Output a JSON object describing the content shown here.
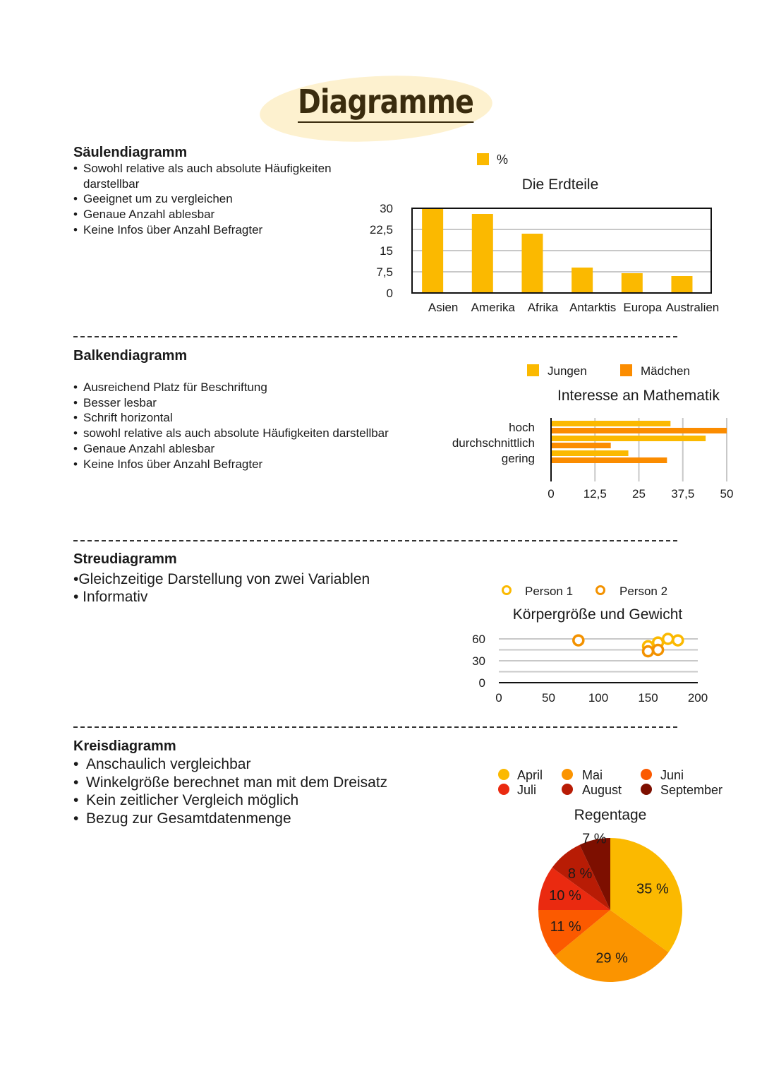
{
  "page_title": "Diagramme",
  "sections": [
    {
      "heading": "Säulendiagramm",
      "bullets": [
        "Sowohl relative als auch absolute Häufigkeiten darstellbar",
        "Geeignet um zu vergleichen",
        "Genaue Anzahl ablesbar",
        "Keine Infos über Anzahl Befragter"
      ]
    },
    {
      "heading": "Balkendiagramm",
      "bullets": [
        "Ausreichend Platz für Beschriftung",
        "Besser lesbar",
        "Schrift horizontal",
        " sowohl relative als auch absolute Häufigkeiten darstellbar",
        "Genaue Anzahl ablesbar",
        "Keine Infos über Anzahl Befragter"
      ]
    },
    {
      "heading": "Streudiagramm",
      "bullets": [
        "•Gleichzeitige Darstellung von zwei Variablen",
        "• Informativ"
      ]
    },
    {
      "heading": "Kreisdiagramm",
      "bullets": [
        "Anschaulich vergleichbar",
        "Winkelgröße berechnet man mit dem Dreisatz",
        "Kein zeitlicher Vergleich möglich",
        "Bezug zur Gesamtdatenmenge"
      ]
    }
  ],
  "chart_data": [
    {
      "type": "bar",
      "title": "Die Erdteile",
      "legend": [
        "%"
      ],
      "colors": [
        "#fbb900"
      ],
      "categories": [
        "Asien",
        "Amerika",
        "Afrika",
        "Antarktis",
        "Europa",
        "Australien"
      ],
      "values": [
        30,
        28,
        21,
        9,
        7,
        6
      ],
      "ylim": [
        0,
        30
      ],
      "yticks": [
        "0",
        "7,5",
        "15",
        "22,5",
        "30"
      ]
    },
    {
      "type": "bar",
      "orientation": "horizontal",
      "title": "Interesse an Mathematik",
      "categories": [
        "hoch",
        "durchschnittlich",
        "gering"
      ],
      "series": [
        {
          "name": "Jungen",
          "color": "#fbb900",
          "values": [
            34,
            44,
            22
          ]
        },
        {
          "name": "Mädchen",
          "color": "#fb8c00",
          "values": [
            50,
            17,
            33
          ]
        }
      ],
      "xlim": [
        0,
        50
      ],
      "xticks": [
        "0",
        "12,5",
        "25",
        "37,5",
        "50"
      ]
    },
    {
      "type": "scatter",
      "title": "Körpergröße und Gewicht",
      "series": [
        {
          "name": "Person 1",
          "color": "#fbb900",
          "points": [
            [
              150,
              50
            ],
            [
              160,
              55
            ],
            [
              170,
              60
            ],
            [
              180,
              58
            ]
          ]
        },
        {
          "name": "Person 2",
          "color": "#f39200",
          "points": [
            [
              80,
              58
            ],
            [
              150,
              43
            ],
            [
              160,
              45
            ]
          ]
        }
      ],
      "xlim": [
        0,
        200
      ],
      "ylim": [
        0,
        60
      ],
      "xticks": [
        "0",
        "50",
        "100",
        "150",
        "200"
      ],
      "yticks": [
        "0",
        "30",
        "60"
      ]
    },
    {
      "type": "pie",
      "title": "Regentage",
      "labels": [
        "April",
        "Mai",
        "Juni",
        "Juli",
        "August",
        "September"
      ],
      "values": [
        35,
        29,
        11,
        10,
        8,
        7
      ],
      "value_labels": [
        "35 %",
        "29 %",
        "11 %",
        "10 %",
        "8 %",
        "7 %"
      ],
      "colors": [
        "#fbb900",
        "#fb9400",
        "#fb5a00",
        "#ea2a10",
        "#b81c05",
        "#7d0f00"
      ]
    }
  ]
}
